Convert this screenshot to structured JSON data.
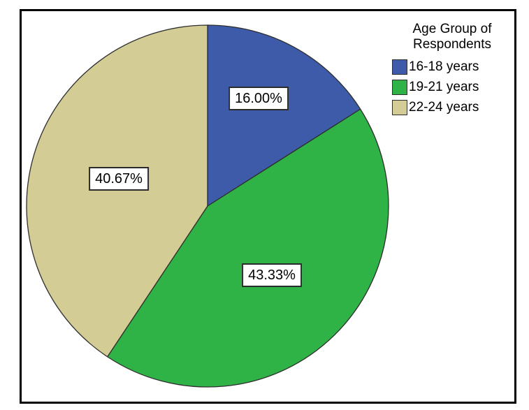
{
  "chart_data": {
    "type": "pie",
    "title": "Age Group of Respondents",
    "categories": [
      "16-18 years",
      "19-21 years",
      "22-24 years"
    ],
    "values": [
      16.0,
      43.33,
      40.67
    ],
    "value_labels": [
      "16.00%",
      "43.33%",
      "40.67%"
    ],
    "colors": [
      "#3D5BA9",
      "#2FB347",
      "#D3CC95"
    ],
    "slice_border_color": "#2e2e2e",
    "start_angle_deg": -90,
    "direction": "clockwise",
    "legend_position": "top-right",
    "frame_border_color": "#000000",
    "background_color": "#ffffff"
  },
  "legend": {
    "title_line1": "Age Group of",
    "title_line2": "Respondents",
    "items": [
      {
        "label": "16-18 years",
        "color": "#3D5BA9"
      },
      {
        "label": "19-21 years",
        "color": "#2FB347"
      },
      {
        "label": "22-24 years",
        "color": "#D3CC95"
      }
    ]
  },
  "slice_labels": [
    {
      "text": "16.00%"
    },
    {
      "text": "43.33%"
    },
    {
      "text": "40.67%"
    }
  ]
}
